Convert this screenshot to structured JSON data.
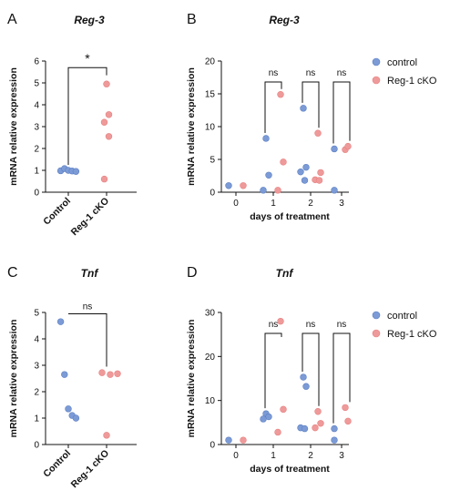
{
  "colors": {
    "control": "#7c9bd6",
    "cko": "#ef9a9a",
    "axis": "#111111"
  },
  "legend": [
    {
      "label": "control",
      "color": "#7c9bd6"
    },
    {
      "label": "Reg-1 cKO",
      "color": "#ef9a9a"
    }
  ],
  "chart_data": [
    {
      "panel": "A",
      "type": "scatter",
      "title": "Reg-3",
      "ylabel": "mRNA relative expression",
      "xlabel": "",
      "ylim": [
        0,
        6
      ],
      "yticks": [
        0,
        1,
        2,
        3,
        4,
        5,
        6
      ],
      "categories": [
        "Control",
        "Reg-1 cKO"
      ],
      "series": [
        {
          "key": "control",
          "category": "Control",
          "values": [
            0.98,
            1.08,
            1.0,
            0.97,
            0.95
          ]
        },
        {
          "key": "cko",
          "category": "Reg-1 cKO",
          "values": [
            4.95,
            3.55,
            3.2,
            2.55,
            0.6
          ]
        }
      ],
      "significance": [
        {
          "label": "*",
          "between": [
            "Control",
            "Reg-1 cKO"
          ]
        }
      ]
    },
    {
      "panel": "B",
      "type": "scatter",
      "title": "Reg-3",
      "ylabel": "mRNA relative expression",
      "xlabel": "days of treatment",
      "ylim": [
        0,
        20
      ],
      "yticks": [
        0,
        5,
        10,
        15,
        20
      ],
      "xticks": [
        0,
        1,
        2,
        3
      ],
      "series": [
        {
          "name": "control",
          "key": "control",
          "points": [
            [
              0,
              1.0
            ],
            [
              1,
              8.2
            ],
            [
              1,
              2.6
            ],
            [
              1,
              0.3
            ],
            [
              2,
              12.8
            ],
            [
              2,
              3.8
            ],
            [
              2,
              3.1
            ],
            [
              2,
              1.8
            ],
            [
              3,
              6.6
            ],
            [
              3,
              0.3
            ]
          ]
        },
        {
          "name": "Reg-1 cKO",
          "key": "cko",
          "points": [
            [
              0,
              1.0
            ],
            [
              1,
              14.9
            ],
            [
              1,
              4.6
            ],
            [
              1,
              0.3
            ],
            [
              2,
              9.0
            ],
            [
              2,
              3.0
            ],
            [
              2,
              1.9
            ],
            [
              2,
              1.8
            ],
            [
              3,
              6.5
            ],
            [
              3,
              7.0
            ]
          ]
        }
      ],
      "significance": [
        {
          "label": "ns",
          "day": 1
        },
        {
          "label": "ns",
          "day": 2
        },
        {
          "label": "ns",
          "day": 3
        }
      ]
    },
    {
      "panel": "C",
      "type": "scatter",
      "title": "Tnf",
      "ylabel": "mRNA relative expression",
      "xlabel": "",
      "ylim": [
        0,
        5
      ],
      "yticks": [
        0,
        1,
        2,
        3,
        4,
        5
      ],
      "categories": [
        "Control",
        "Reg-1 cKO"
      ],
      "series": [
        {
          "key": "control",
          "category": "Control",
          "values": [
            4.65,
            2.65,
            1.35,
            1.1,
            1.0
          ]
        },
        {
          "key": "cko",
          "category": "Reg-1 cKO",
          "values": [
            2.72,
            2.65,
            2.68,
            0.35
          ]
        }
      ],
      "significance": [
        {
          "label": "ns",
          "between": [
            "Control",
            "Reg-1 cKO"
          ]
        }
      ]
    },
    {
      "panel": "D",
      "type": "scatter",
      "title": "Tnf",
      "ylabel": "mRNA relative expression",
      "xlabel": "days of treatment",
      "ylim": [
        0,
        30
      ],
      "yticks": [
        0,
        10,
        20,
        30
      ],
      "xticks": [
        0,
        1,
        2,
        3
      ],
      "series": [
        {
          "name": "control",
          "key": "control",
          "points": [
            [
              0,
              1.0
            ],
            [
              1,
              7.0
            ],
            [
              1,
              6.3
            ],
            [
              1,
              5.8
            ],
            [
              2,
              15.3
            ],
            [
              2,
              13.2
            ],
            [
              2,
              3.8
            ],
            [
              2,
              3.6
            ],
            [
              3,
              3.6
            ],
            [
              3,
              1.0
            ]
          ]
        },
        {
          "name": "Reg-1 cKO",
          "key": "cko",
          "points": [
            [
              0,
              1.0
            ],
            [
              1,
              28.0
            ],
            [
              1,
              8.0
            ],
            [
              1,
              2.8
            ],
            [
              2,
              7.5
            ],
            [
              2,
              4.8
            ],
            [
              2,
              3.8
            ],
            [
              3,
              8.4
            ],
            [
              3,
              5.3
            ]
          ]
        }
      ],
      "significance": [
        {
          "label": "ns",
          "day": 1
        },
        {
          "label": "ns",
          "day": 2
        },
        {
          "label": "ns",
          "day": 3
        }
      ]
    }
  ]
}
